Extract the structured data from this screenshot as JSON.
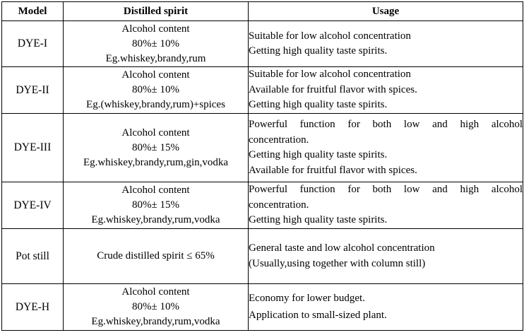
{
  "headers": {
    "model": "Model",
    "spirit": "Distilled spirit",
    "usage": "Usage"
  },
  "rows": [
    {
      "model": "DYE-I",
      "spirit": [
        "Alcohol content",
        "80%± 10%",
        "Eg.whiskey,brandy,rum"
      ],
      "usage": [
        "Suitable for low alcohol concentration",
        "Getting high quality taste spirits."
      ]
    },
    {
      "model": "DYE-II",
      "spirit": [
        "Alcohol content",
        "80%± 10%",
        "Eg.(whiskey,brandy,rum)+spices"
      ],
      "usage": [
        "Suitable for low alcohol concentration",
        "Available for fruitful flavor with spices.",
        "Getting high quality taste spirits."
      ]
    },
    {
      "model": "DYE-III",
      "spirit": [
        "Alcohol content",
        "80%± 15%",
        "Eg.whiskey,brandy,rum,gin,vodka"
      ],
      "usage": [
        "Powerful function for both low and high alcohol",
        "concentration.",
        "Getting high quality taste spirits.",
        "Available for fruitful flavor with spices."
      ]
    },
    {
      "model": "DYE-IV",
      "spirit": [
        "Alcohol content",
        "80%± 15%",
        "Eg.whiskey,brandy,rum,vodka"
      ],
      "usage": [
        "Powerful function for both low and high alcohol",
        "concentration.",
        "Getting high quality taste spirits."
      ]
    },
    {
      "model": "Pot still",
      "spirit": [
        "Crude distilled spirit ≤ 65%"
      ],
      "usage": [
        "General taste and low alcohol concentration",
        "(Usually,using together with column still)"
      ]
    },
    {
      "model": "DYE-H",
      "spirit": [
        "Alcohol content",
        "80%± 10%",
        "Eg.whiskey,brandy,rum,vodka"
      ],
      "usage": [
        "Economy for lower budget.",
        "Application to small-sized plant."
      ]
    }
  ]
}
